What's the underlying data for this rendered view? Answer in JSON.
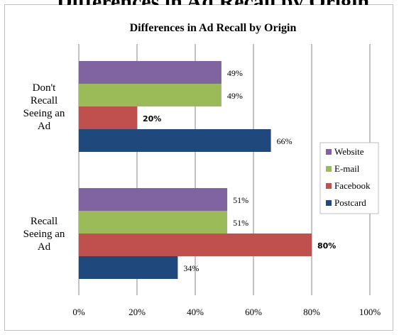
{
  "chart_data": {
    "type": "bar",
    "orientation": "horizontal",
    "title": "Differences in Ad Recall by Origin",
    "xlabel": "",
    "ylabel": "",
    "xlim": [
      0,
      100
    ],
    "x_ticks": [
      "0%",
      "20%",
      "40%",
      "60%",
      "80%",
      "100%"
    ],
    "grid": true,
    "legend_position": "right",
    "categories": [
      [
        "Don't",
        "Recall",
        "Seeing an",
        "Ad"
      ],
      [
        "Recall",
        "Seeing an",
        "Ad"
      ]
    ],
    "series": [
      {
        "name": "Website",
        "color": "#8064a2",
        "values": [
          49,
          51
        ],
        "labels": [
          "49%",
          "51%"
        ]
      },
      {
        "name": "E-mail",
        "color": "#9bbb59",
        "values": [
          49,
          51
        ],
        "labels": [
          "49%",
          "51%"
        ]
      },
      {
        "name": "Facebook",
        "color": "#c0504d",
        "values": [
          20,
          80
        ],
        "labels": [
          "20%",
          "80%"
        ]
      },
      {
        "name": "Postcard",
        "color": "#1f497d",
        "values": [
          66,
          34
        ],
        "labels": [
          "66%",
          "34%"
        ]
      }
    ],
    "bold_labels": [
      "Facebook"
    ],
    "top_partial_text": "Differences in Ad Recall by Origin"
  }
}
